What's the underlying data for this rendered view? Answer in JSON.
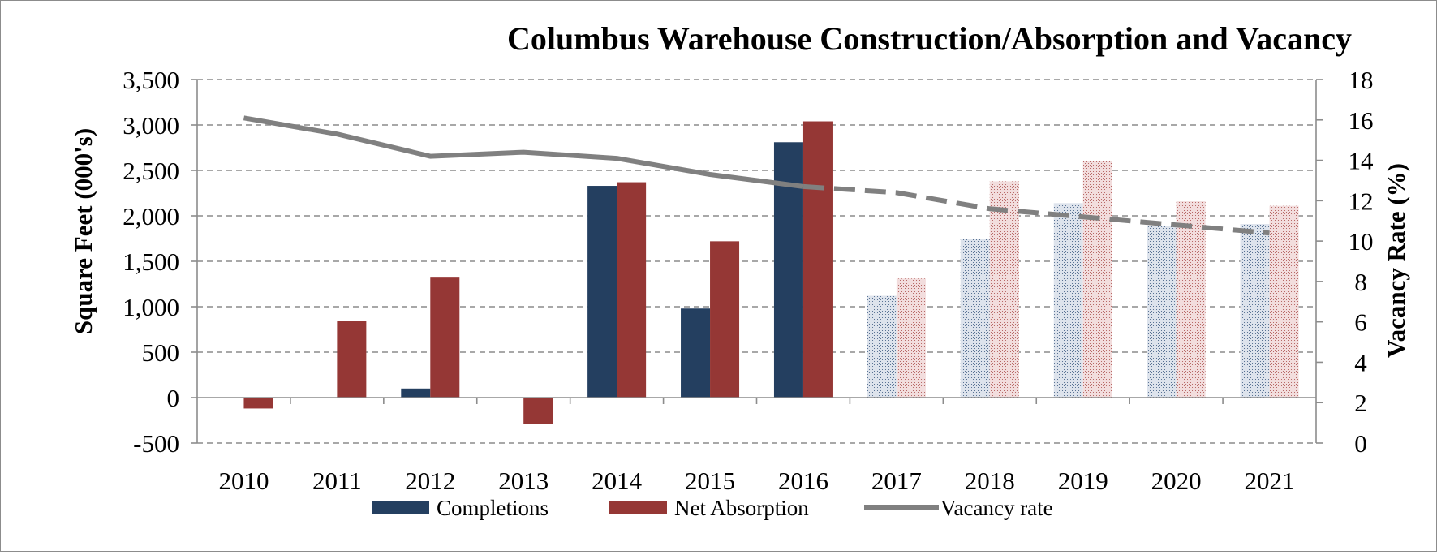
{
  "chart_data": {
    "type": "bar",
    "title": "Columbus Warehouse Construction/Absorption and Vacancy",
    "ylabel_left": "Square Feet (000's)",
    "ylabel_right": "Vacancy Rate (%)",
    "ylim_left": [
      -500,
      3500
    ],
    "ylim_right": [
      0,
      18
    ],
    "yticks_left": [
      "-500",
      "0",
      "500",
      "1,000",
      "1,500",
      "2,000",
      "2,500",
      "3,000",
      "3,500"
    ],
    "yticks_right": [
      "0",
      "2",
      "4",
      "6",
      "8",
      "10",
      "12",
      "14",
      "16",
      "18"
    ],
    "grid": "horizontal-dashed",
    "legend_position": "bottom",
    "categories": [
      "2010",
      "2011",
      "2012",
      "2013",
      "2014",
      "2015",
      "2016",
      "2017",
      "2018",
      "2019",
      "2020",
      "2021"
    ],
    "forecast_from": "2017",
    "series": [
      {
        "name": "Completions",
        "type": "bar",
        "axis": "left",
        "color": "#243f60",
        "values": [
          0,
          0,
          100,
          0,
          2330,
          980,
          2810,
          1120,
          1750,
          2140,
          1890,
          1910
        ]
      },
      {
        "name": "Net Absorption",
        "type": "bar",
        "axis": "left",
        "color": "#953735",
        "values": [
          -120,
          840,
          1320,
          -290,
          2370,
          1720,
          3040,
          1310,
          2380,
          2600,
          2160,
          2110
        ]
      },
      {
        "name": "Vacancy rate",
        "type": "line",
        "axis": "right",
        "color": "#808080",
        "values": [
          16.1,
          15.3,
          14.2,
          14.4,
          14.1,
          13.3,
          12.7,
          12.4,
          11.6,
          11.2,
          10.8,
          10.4
        ]
      }
    ]
  }
}
